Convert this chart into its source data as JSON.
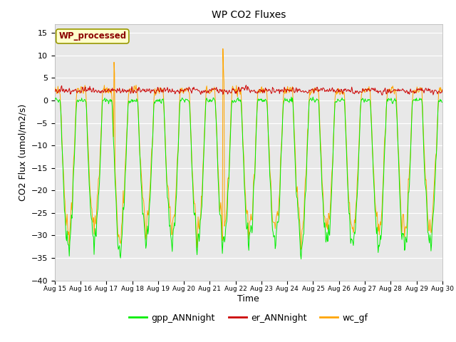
{
  "title": "WP CO2 Fluxes",
  "xlabel": "Time",
  "ylabel": "CO2 Flux (umol/m2/s)",
  "ylim": [
    -40,
    17
  ],
  "yticks": [
    -40,
    -35,
    -30,
    -25,
    -20,
    -15,
    -10,
    -5,
    0,
    5,
    10,
    15
  ],
  "x_start_day": 15,
  "x_end_day": 30,
  "x_tick_days": [
    15,
    16,
    17,
    18,
    19,
    20,
    21,
    22,
    23,
    24,
    25,
    26,
    27,
    28,
    29,
    30
  ],
  "x_tick_labels": [
    "Aug 15",
    "Aug 16",
    "Aug 17",
    "Aug 18",
    "Aug 19",
    "Aug 20",
    "Aug 21",
    "Aug 22",
    "Aug 23",
    "Aug 24",
    "Aug 25",
    "Aug 26",
    "Aug 27",
    "Aug 28",
    "Aug 29",
    "Aug 30"
  ],
  "fig_bg_color": "#ffffff",
  "plot_bg_color": "#e8e8e8",
  "gpp_color": "#00ee00",
  "er_color": "#cc0000",
  "wc_color": "#ffa500",
  "legend_labels": [
    "gpp_ANNnight",
    "er_ANNnight",
    "wc_gf"
  ],
  "annotation_text": "WP_processed",
  "annotation_color": "#8b0000",
  "annotation_bg": "#ffffcc",
  "annotation_edge": "#999900",
  "seed": 42
}
